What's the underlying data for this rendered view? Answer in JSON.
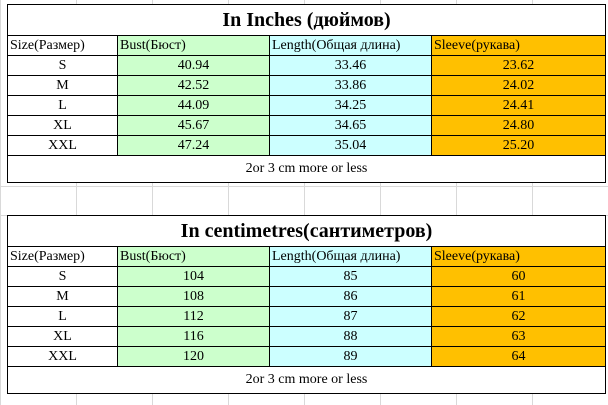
{
  "inches": {
    "title": "In Inches (дюймов)",
    "headers": [
      "Size(Размер)",
      "Bust(Бюст)",
      "Length(Общая длина)",
      "Sleeve(рукава)"
    ],
    "rows": [
      [
        "S",
        "40.94",
        "33.46",
        "23.62"
      ],
      [
        "M",
        "42.52",
        "33.86",
        "24.02"
      ],
      [
        "L",
        "44.09",
        "34.25",
        "24.41"
      ],
      [
        "XL",
        "45.67",
        "34.65",
        "24.80"
      ],
      [
        "XXL",
        "47.24",
        "35.04",
        "25.20"
      ]
    ],
    "note": "2or 3 cm more or less"
  },
  "centimetres": {
    "title": "In centimetres(сантиметров)",
    "headers": [
      "Size(Размер)",
      "Bust(Бюст)",
      "Length(Общая длина)",
      "Sleeve(рукава)"
    ],
    "rows": [
      [
        "S",
        "104",
        "85",
        "60"
      ],
      [
        "M",
        "108",
        "86",
        "61"
      ],
      [
        "L",
        "112",
        "87",
        "62"
      ],
      [
        "XL",
        "116",
        "88",
        "63"
      ],
      [
        "XXL",
        "120",
        "89",
        "64"
      ]
    ],
    "note": "2or 3 cm more or less"
  },
  "colors": {
    "bust": "#ccffcc",
    "length": "#ccffff",
    "sleeve": "#ffc000"
  }
}
